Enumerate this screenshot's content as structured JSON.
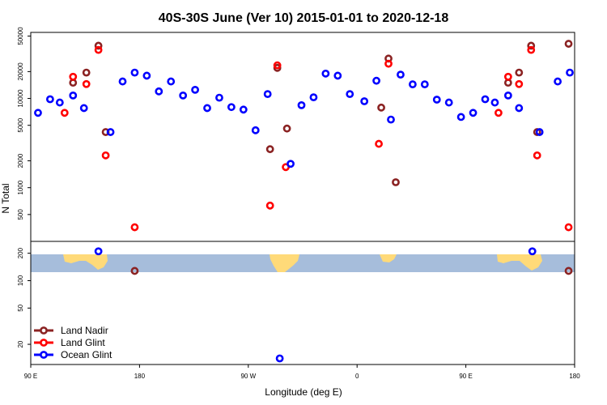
{
  "chart_data": {
    "type": "scatter",
    "title": "40S-30S June (Ver 10)   2015-01-01 to 2020-12-18",
    "xlabel": "Longitude (deg E)",
    "ylabel": "N Total",
    "x_ticks": [
      {
        "value": 90,
        "label": "90 E"
      },
      {
        "value": 180,
        "label": "180"
      },
      {
        "value": 270,
        "label": "90 W"
      },
      {
        "value": 360,
        "label": "0"
      },
      {
        "value": 450,
        "label": "90 E"
      },
      {
        "value": 540,
        "label": "180"
      }
    ],
    "xlim": [
      90,
      540
    ],
    "upper_panel": {
      "scale": "log",
      "ylim": [
        250,
        55000
      ],
      "y_ticks": [
        500,
        1000,
        2000,
        5000,
        10000,
        20000,
        50000
      ],
      "series": [
        {
          "name": "Land Nadir",
          "color": "#8B2323",
          "points": [
            [
              125,
              15000
            ],
            [
              136,
              19500
            ],
            [
              146,
              39000
            ],
            [
              152,
              4200
            ],
            [
              288,
              2700
            ],
            [
              294,
              22000
            ],
            [
              302,
              4600
            ],
            [
              380,
              7900
            ],
            [
              386,
              28000
            ],
            [
              392,
              1150
            ],
            [
              485,
              15000
            ],
            [
              494,
              19500
            ],
            [
              504,
              39000
            ],
            [
              509,
              4200
            ],
            [
              535,
              41000
            ]
          ]
        },
        {
          "name": "Land Glint",
          "color": "#FF0000",
          "points": [
            [
              118,
              6900
            ],
            [
              125,
              17500
            ],
            [
              136,
              14500
            ],
            [
              146,
              35000
            ],
            [
              152,
              2300
            ],
            [
              176,
              360
            ],
            [
              288,
              630
            ],
            [
              294,
              23500
            ],
            [
              301,
              1700
            ],
            [
              378,
              3100
            ],
            [
              386,
              24500
            ],
            [
              477,
              6900
            ],
            [
              485,
              17500
            ],
            [
              494,
              14500
            ],
            [
              504,
              35000
            ],
            [
              509,
              2300
            ],
            [
              535,
              360
            ]
          ]
        },
        {
          "name": "Ocean Glint",
          "color": "#0000FF",
          "points": [
            [
              96,
              6900
            ],
            [
              106,
              9800
            ],
            [
              114,
              9000
            ],
            [
              125,
              10800
            ],
            [
              134,
              7800
            ],
            [
              156,
              4200
            ],
            [
              166,
              15500
            ],
            [
              176,
              19500
            ],
            [
              186,
              18000
            ],
            [
              196,
              12000
            ],
            [
              206,
              15500
            ],
            [
              216,
              10800
            ],
            [
              226,
              12500
            ],
            [
              236,
              7800
            ],
            [
              246,
              10200
            ],
            [
              256,
              8000
            ],
            [
              266,
              7500
            ],
            [
              276,
              4400
            ],
            [
              286,
              11200
            ],
            [
              305,
              1850
            ],
            [
              314,
              8400
            ],
            [
              324,
              10300
            ],
            [
              334,
              19000
            ],
            [
              344,
              18000
            ],
            [
              354,
              11200
            ],
            [
              366,
              9300
            ],
            [
              376,
              15800
            ],
            [
              388,
              5800
            ],
            [
              396,
              18500
            ],
            [
              406,
              14400
            ],
            [
              416,
              14400
            ],
            [
              426,
              9700
            ],
            [
              436,
              9000
            ],
            [
              446,
              6200
            ],
            [
              456,
              6900
            ],
            [
              466,
              9800
            ],
            [
              474,
              9000
            ],
            [
              485,
              10800
            ],
            [
              494,
              7800
            ],
            [
              511,
              4200
            ],
            [
              526,
              15500
            ],
            [
              536,
              19500
            ]
          ]
        }
      ]
    },
    "lower_panel": {
      "scale": "log",
      "ylim": [
        12,
        270
      ],
      "y_ticks": [
        20,
        50,
        100,
        200
      ],
      "series": [
        {
          "name": "Land Nadir",
          "color": "#8B2323",
          "points": [
            [
              176,
              128
            ],
            [
              535,
              128
            ]
          ]
        },
        {
          "name": "Ocean Glint",
          "color": "#0000FF",
          "points": [
            [
              146,
              210
            ],
            [
              296,
              14
            ],
            [
              505,
              210
            ]
          ]
        }
      ]
    },
    "legend": {
      "placement": "bottom-left",
      "entries": [
        {
          "label": "Land Nadir",
          "color": "#8B2323"
        },
        {
          "label": "Land Glint",
          "color": "#FF0000"
        },
        {
          "label": "Ocean Glint",
          "color": "#0000FF"
        }
      ]
    },
    "map_strip": {
      "ocean_color": "#A6BDDB",
      "land_color": "#FFDA79"
    }
  }
}
